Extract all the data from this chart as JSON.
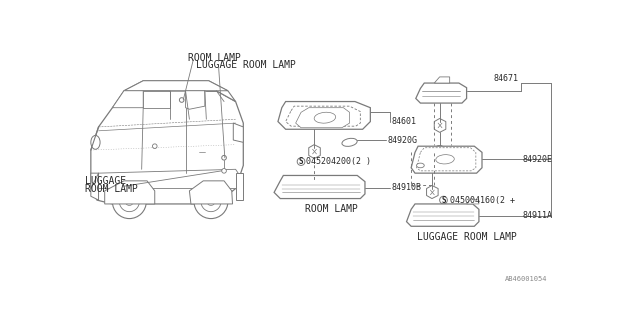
{
  "bg_color": "#ffffff",
  "line_color": "#7a7a7a",
  "text_color": "#2a2a2a",
  "diagram_number": "AB46001054",
  "font_size_small": 6.0,
  "font_size_label": 7.0,
  "car_label_left1": "LUGGAGE",
  "car_label_left2": "ROOM LAMP",
  "car_label_top1": "ROOM LAMP",
  "car_label_top2": "LUGGAGE ROOM LAMP",
  "center_label": "ROOM LAMP",
  "right_label": "LUGGAGE ROOM LAMP",
  "p84601": "84601",
  "p84920G": "84920G",
  "p045204200": "045204200(2 )",
  "p84910B": "84910B",
  "p84671": "84671",
  "p84920E": "84920E",
  "p045004160": "045004160(2 +",
  "p84911A": "84911A"
}
